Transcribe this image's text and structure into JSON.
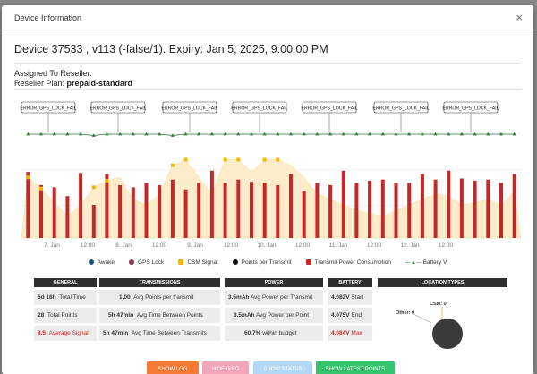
{
  "modal": {
    "title": "Device Information",
    "close_label": "×"
  },
  "device": {
    "line": "Device 37533   , v113 (-false/1). Expiry: Jan 5, 2025, 9:00:00 PM"
  },
  "assignment": {
    "reseller_label": "Assigned To Reseller:",
    "plan_label": "Reseller Plan:",
    "plan_value": "prepaid-standard"
  },
  "chart_data": {
    "type": "bar",
    "annotations": [
      "ERROR_GPS_LOCK_FAIL",
      "ERROR_GPS_LOCK_FAIL",
      "ERROR_GPS_LOCK_FAIL",
      "ERROR_GPS_LOCK_FAIL",
      "ERROR_GPS_LOCK_FAIL",
      "ERROR_GPS_LOCK_FAIL",
      "ERROR_GPS_LOCK_FAIL"
    ],
    "x_tick_labels": [
      "7. Jan",
      "12:00",
      "8. Jan",
      "12:00",
      "9. Jan",
      "12:00",
      "10. Jan",
      "12:00",
      "11. Jan",
      "12:00",
      "12. Jan",
      "12:00"
    ],
    "transmit_power_bars": [
      60,
      48,
      46,
      38,
      59,
      30,
      58,
      48,
      46,
      50,
      48,
      53,
      44,
      50,
      61,
      50,
      53,
      51,
      50,
      48,
      58,
      43,
      50,
      48,
      61,
      50,
      52,
      53,
      50,
      50,
      58,
      53,
      61,
      54,
      52,
      53,
      50,
      58
    ],
    "csm_signal_points": [
      55,
      45,
      null,
      null,
      null,
      46,
      52,
      null,
      null,
      null,
      null,
      66,
      71,
      null,
      null,
      71,
      71,
      null,
      71,
      71,
      null,
      null,
      null,
      null,
      null,
      null,
      null,
      null,
      null,
      null,
      null,
      null,
      null,
      null,
      null,
      null,
      null,
      null
    ],
    "csm_area": [
      55,
      45,
      32,
      20,
      30,
      46,
      52,
      55,
      35,
      30,
      40,
      66,
      71,
      55,
      40,
      71,
      71,
      60,
      71,
      71,
      66,
      55,
      40,
      35,
      30,
      25,
      22,
      20,
      25,
      30,
      35,
      40,
      38,
      30,
      32,
      35,
      30,
      42
    ],
    "battery_v": [
      100,
      100,
      100,
      100,
      100,
      99,
      100,
      100,
      100,
      100,
      100,
      99,
      100,
      100,
      100,
      100,
      100,
      100,
      100,
      100,
      100,
      100,
      100,
      100,
      100,
      100,
      100,
      100,
      100,
      100,
      100,
      100,
      100,
      100,
      100,
      100,
      100,
      100
    ],
    "legend": [
      {
        "name": "Awake",
        "color": "#1f4e79"
      },
      {
        "name": "GPS Lock",
        "color": "#8b3a5a"
      },
      {
        "name": "CSM Signal",
        "color": "#f5b800"
      },
      {
        "name": "Points per Transmit",
        "color": "#111111"
      },
      {
        "name": "Transmit Power Consumption",
        "color": "#c62828"
      },
      {
        "name": "Battery V",
        "color": "#2e7d32"
      }
    ]
  },
  "stats": {
    "general": {
      "header": "GENERAL",
      "rows": [
        {
          "value": "6d 18h",
          "label": "Total Time"
        },
        {
          "value": "28",
          "label": "Total Points"
        },
        {
          "value": "8.5",
          "label": "Average Signal"
        }
      ]
    },
    "transmissions": {
      "header": "TRANSMISSIONS",
      "rows": [
        {
          "value": "1.00",
          "label": "Avg Points per transmit"
        },
        {
          "value": "5h 47min",
          "label": "Avg Time Between Points"
        },
        {
          "value": "5h 47min",
          "label": "Avg Time Between Transmits"
        }
      ]
    },
    "power": {
      "header": "POWER",
      "rows": [
        {
          "value": "3.5mAh",
          "label": "Avg Power per Transmit"
        },
        {
          "value": "3.5mAh",
          "label": "Avg Power per Point"
        },
        {
          "value": "60.7%",
          "label": "within budget"
        }
      ]
    },
    "battery": {
      "header": "BATTERY",
      "rows": [
        {
          "value": "4.082V",
          "label": "Start"
        },
        {
          "value": "4.075V",
          "label": "End"
        },
        {
          "value": "4.084V",
          "label": "Max"
        }
      ]
    },
    "location": {
      "header": "LOCATION TYPES",
      "csm_label": "CSM: 0",
      "other_label": "Other: 0"
    }
  },
  "buttons": [
    {
      "label": "SHOW LOG",
      "color": "#f47a35"
    },
    {
      "label": "HIDE INFO",
      "color": "#f2a6b8"
    },
    {
      "label": "SHOW STATUS",
      "color": "#b3d8f5"
    },
    {
      "label": "SHOW LATEST POINTS",
      "color": "#35c46b"
    }
  ]
}
